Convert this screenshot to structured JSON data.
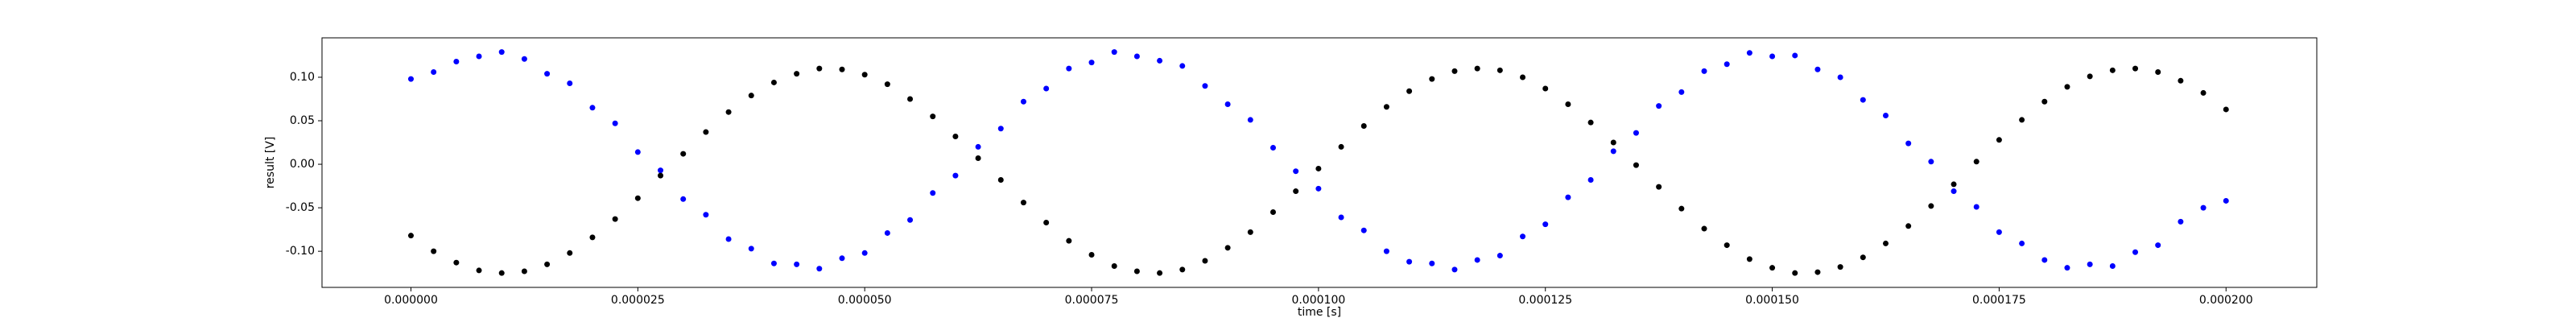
{
  "chart_data": {
    "type": "scatter",
    "xlabel": "time [s]",
    "ylabel": "result [V]",
    "x": [
      0,
      2.5e-06,
      5e-06,
      7.5e-06,
      1e-05,
      1.25e-05,
      1.5e-05,
      1.75e-05,
      2e-05,
      2.25e-05,
      2.5e-05,
      2.75e-05,
      3e-05,
      3.25e-05,
      3.5e-05,
      3.75e-05,
      4e-05,
      4.25e-05,
      4.5e-05,
      4.75e-05,
      5e-05,
      5.25e-05,
      5.5e-05,
      5.75e-05,
      6e-05,
      6.25e-05,
      6.5e-05,
      6.75e-05,
      7e-05,
      7.25e-05,
      7.5e-05,
      7.75e-05,
      8e-05,
      8.25e-05,
      8.5e-05,
      8.75e-05,
      9e-05,
      9.25e-05,
      9.5e-05,
      9.75e-05,
      0.0001,
      0.0001025,
      0.000105,
      0.0001075,
      0.00011,
      0.0001125,
      0.000115,
      0.0001175,
      0.00012,
      0.0001225,
      0.000125,
      0.0001275,
      0.00013,
      0.0001325,
      0.000135,
      0.0001375,
      0.00014,
      0.0001425,
      0.000145,
      0.0001475,
      0.00015,
      0.0001525,
      0.000155,
      0.0001575,
      0.00016,
      0.0001625,
      0.000165,
      0.0001675,
      0.00017,
      0.0001725,
      0.000175,
      0.0001775,
      0.00018,
      0.0001825,
      0.000185,
      0.0001875,
      0.00019,
      0.0001925,
      0.000195,
      0.0001975,
      0.0002
    ],
    "series": [
      {
        "color": "#0000ff",
        "values": [
          0.098,
          0.106,
          0.118,
          0.124,
          0.129,
          0.121,
          0.104,
          0.093,
          0.065,
          0.047,
          0.014,
          -0.007,
          -0.04,
          -0.058,
          -0.086,
          -0.097,
          -0.114,
          -0.115,
          -0.12,
          -0.108,
          -0.102,
          -0.079,
          -0.064,
          -0.033,
          -0.013,
          0.02,
          0.041,
          0.072,
          0.087,
          0.11,
          0.117,
          0.129,
          0.124,
          0.119,
          0.113,
          0.09,
          0.069,
          0.051,
          0.019,
          -0.008,
          -0.028,
          -0.061,
          -0.076,
          -0.1,
          -0.112,
          -0.114,
          -0.121,
          -0.11,
          -0.105,
          -0.083,
          -0.069,
          -0.038,
          -0.018,
          0.015,
          0.036,
          0.067,
          0.083,
          0.107,
          0.115,
          0.128,
          0.124,
          0.125,
          0.109,
          0.1,
          0.074,
          0.056,
          0.024,
          0.003,
          -0.031,
          -0.049,
          -0.078,
          -0.091,
          -0.11,
          -0.119,
          -0.115,
          -0.117,
          -0.101,
          -0.093,
          -0.066,
          -0.05,
          -0.042
        ]
      },
      {
        "color": "#000000",
        "values": [
          -0.082,
          -0.1,
          -0.113,
          -0.122,
          -0.125,
          -0.123,
          -0.115,
          -0.102,
          -0.084,
          -0.063,
          -0.039,
          -0.013,
          0.012,
          0.037,
          0.06,
          0.079,
          0.094,
          0.104,
          0.11,
          0.109,
          0.103,
          0.092,
          0.075,
          0.055,
          0.032,
          0.007,
          -0.018,
          -0.044,
          -0.067,
          -0.088,
          -0.104,
          -0.117,
          -0.123,
          -0.125,
          -0.121,
          -0.111,
          -0.096,
          -0.078,
          -0.055,
          -0.031,
          -0.005,
          0.02,
          0.044,
          0.066,
          0.084,
          0.098,
          0.107,
          0.11,
          0.108,
          0.1,
          0.087,
          0.069,
          0.048,
          0.025,
          -0.001,
          -0.026,
          -0.051,
          -0.074,
          -0.093,
          -0.109,
          -0.119,
          -0.125,
          -0.124,
          -0.118,
          -0.107,
          -0.091,
          -0.071,
          -0.048,
          -0.023,
          0.003,
          0.028,
          0.051,
          0.072,
          0.089,
          0.101,
          0.108,
          0.11,
          0.106,
          0.096,
          0.082,
          0.063
        ]
      }
    ],
    "xlim": [
      -9.8e-06,
      0.00021
    ],
    "ylim": [
      -0.1415,
      0.1453
    ],
    "xticks": [
      {
        "value": 0,
        "label": "0.000000"
      },
      {
        "value": 2.5e-05,
        "label": "0.000025"
      },
      {
        "value": 5e-05,
        "label": "0.000050"
      },
      {
        "value": 7.5e-05,
        "label": "0.000075"
      },
      {
        "value": 0.0001,
        "label": "0.000100"
      },
      {
        "value": 0.000125,
        "label": "0.000125"
      },
      {
        "value": 0.00015,
        "label": "0.000150"
      },
      {
        "value": 0.000175,
        "label": "0.000175"
      },
      {
        "value": 0.0002,
        "label": "0.000200"
      }
    ],
    "yticks": [
      {
        "value": -0.1,
        "label": "-0.10"
      },
      -0.05,
      {
        "value": 0,
        "label": "0.00"
      },
      0.05,
      {
        "value": 0.1,
        "label": "0.10"
      }
    ],
    "grid": false
  }
}
